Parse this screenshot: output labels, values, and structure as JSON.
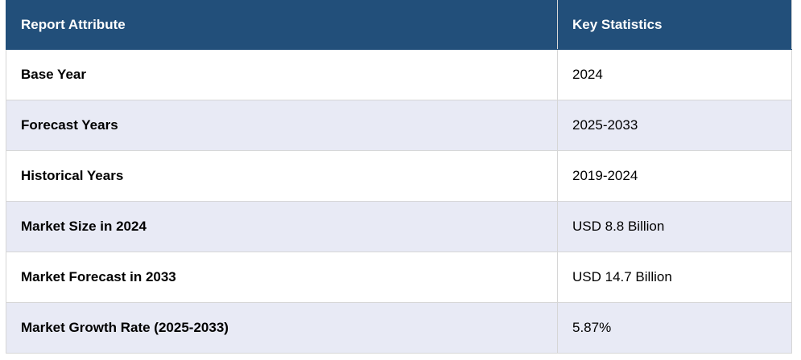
{
  "table": {
    "header": [
      "Report Attribute",
      "Key Statistics"
    ],
    "rows": [
      [
        "Base Year",
        "2024"
      ],
      [
        "Forecast Years",
        "2025-2033"
      ],
      [
        "Historical Years",
        "2019-2024"
      ],
      [
        "Market Size in 2024",
        "USD 8.8 Billion"
      ],
      [
        "Market Forecast in 2033",
        "USD 14.7 Billion"
      ],
      [
        "Market Growth Rate (2025-2033)",
        "5.87%"
      ]
    ]
  }
}
